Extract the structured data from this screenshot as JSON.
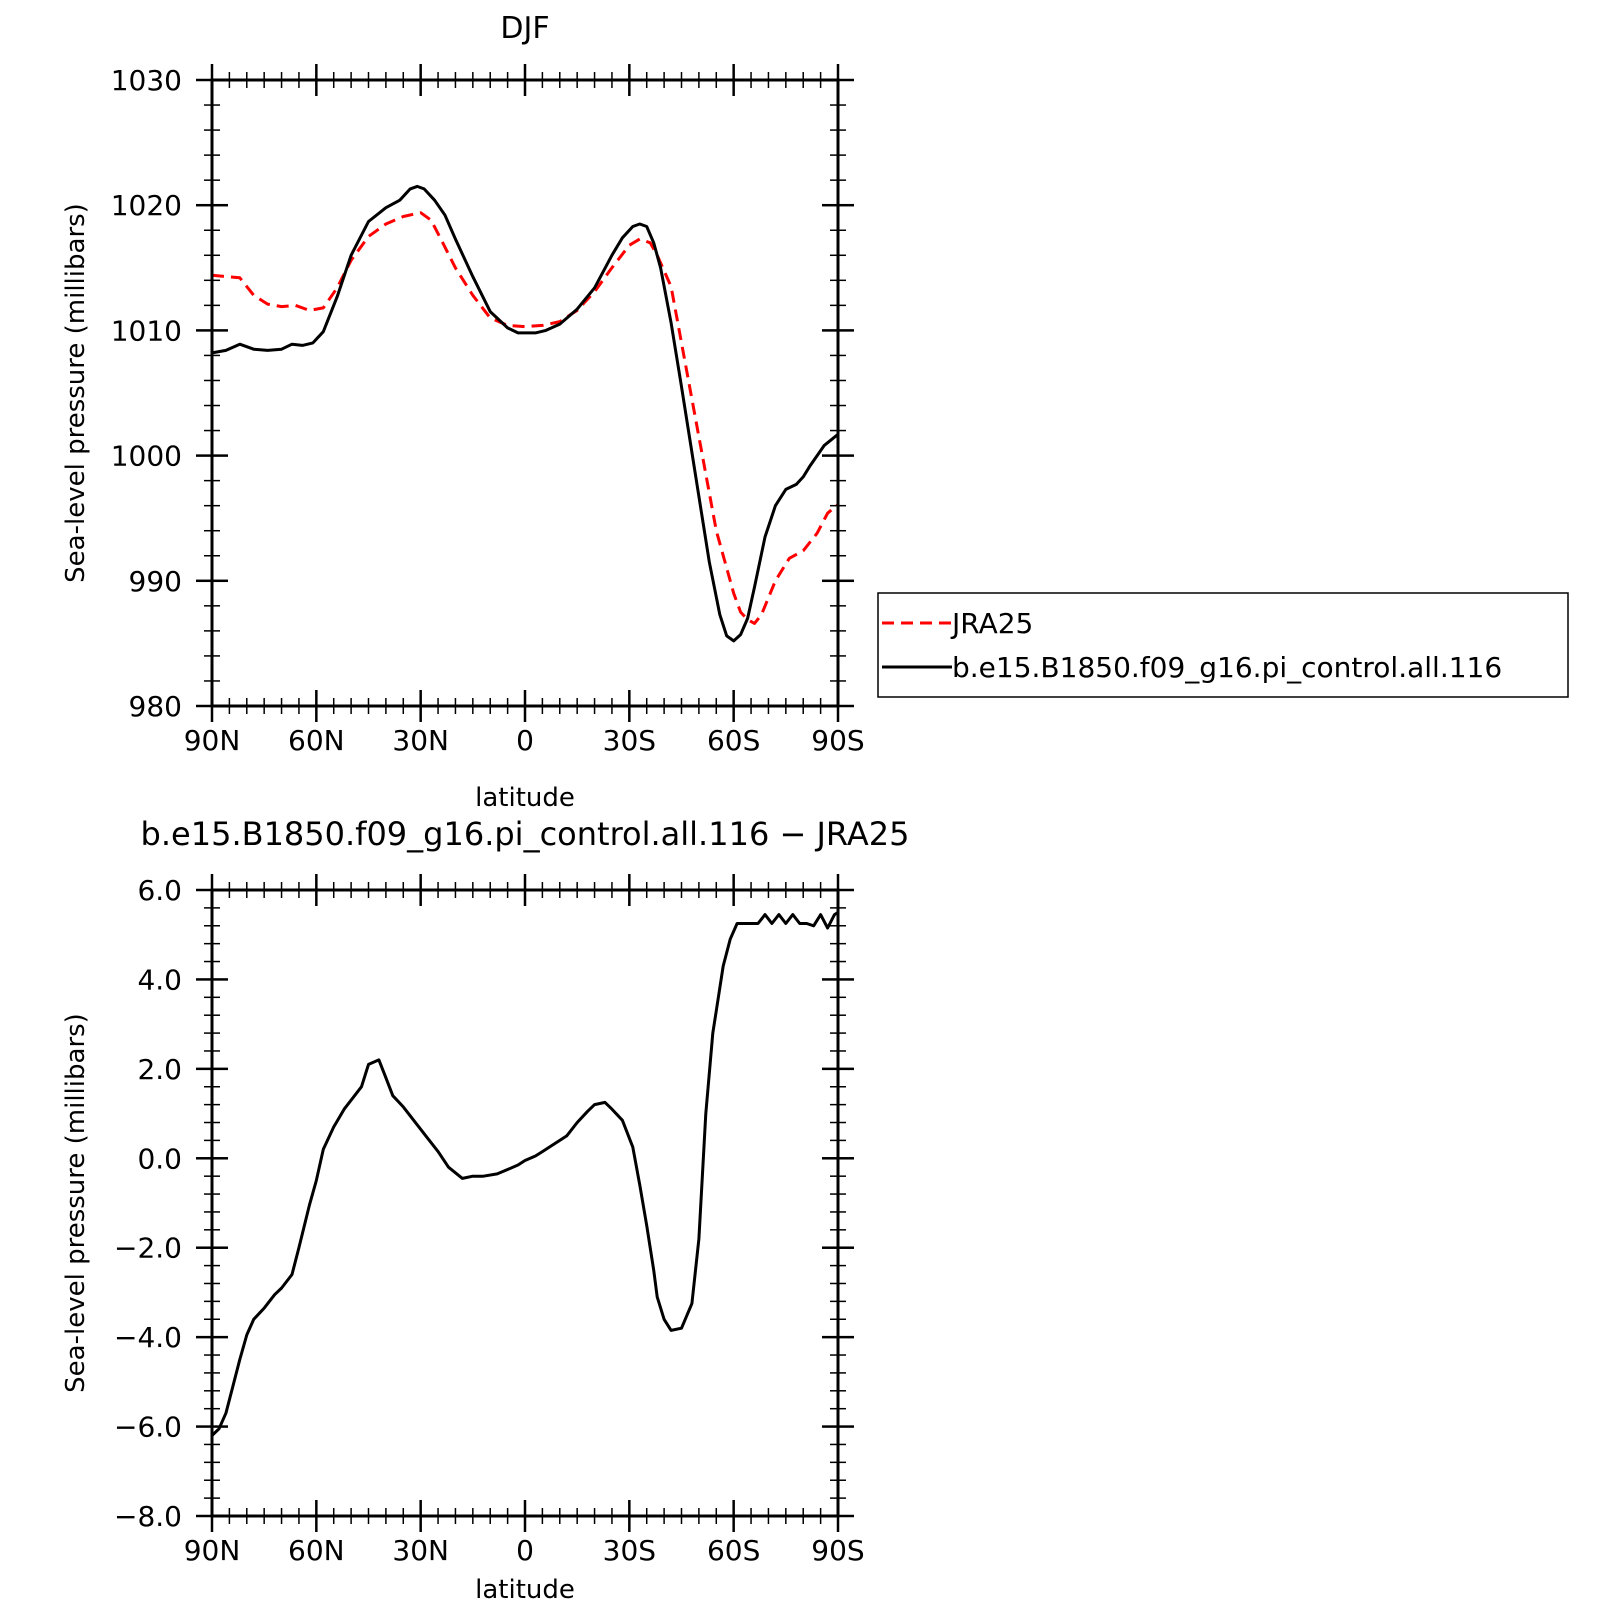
{
  "chart_data": [
    {
      "type": "line",
      "title": "DJF",
      "xlabel": "latitude",
      "ylabel": "Sea-level pressure (millibars)",
      "xlim": [
        90,
        -90
      ],
      "ylim": [
        980,
        1030
      ],
      "xticks": [
        {
          "value": 90,
          "label": "90N"
        },
        {
          "value": 60,
          "label": "60N"
        },
        {
          "value": 30,
          "label": "30N"
        },
        {
          "value": 0,
          "label": "0"
        },
        {
          "value": -30,
          "label": "30S"
        },
        {
          "value": -60,
          "label": "60S"
        },
        {
          "value": -90,
          "label": "90S"
        }
      ],
      "yticks": [
        {
          "value": 980,
          "label": "980"
        },
        {
          "value": 990,
          "label": "990"
        },
        {
          "value": 1000,
          "label": "1000"
        },
        {
          "value": 1010,
          "label": "1010"
        },
        {
          "value": 1020,
          "label": "1020"
        },
        {
          "value": 1030,
          "label": "1030"
        }
      ],
      "legend_position": "right",
      "series": [
        {
          "name": "JRA25",
          "color": "#ff0000",
          "dash": "dashed",
          "x": [
            90,
            82,
            78,
            74,
            70,
            66,
            62,
            58,
            54,
            50,
            45,
            40,
            35,
            30,
            27,
            24,
            20,
            15,
            10,
            5,
            0,
            -5,
            -10,
            -15,
            -20,
            -25,
            -30,
            -33,
            -36,
            -38,
            -42,
            -45,
            -50,
            -55,
            -60,
            -62,
            -64,
            -66,
            -68,
            -72,
            -76,
            -80,
            -84,
            -87,
            -90
          ],
          "y": [
            1014.4,
            1014.2,
            1012.8,
            1012.1,
            1011.9,
            1012.0,
            1011.6,
            1011.8,
            1013.4,
            1015.6,
            1017.5,
            1018.5,
            1019.1,
            1019.4,
            1018.8,
            1017.2,
            1015.0,
            1012.8,
            1011.0,
            1010.4,
            1010.3,
            1010.4,
            1010.7,
            1011.6,
            1013.1,
            1015.0,
            1016.8,
            1017.3,
            1017.0,
            1016.0,
            1013.5,
            1009.0,
            1001.5,
            994.0,
            989.0,
            987.5,
            986.9,
            986.6,
            987.3,
            990.0,
            991.8,
            992.4,
            993.8,
            995.4,
            996.1
          ]
        },
        {
          "name": "b.e15.B1850.f09_g16.pi_control.all.116",
          "color": "#000000",
          "dash": "solid",
          "x": [
            90,
            86,
            82,
            78,
            74,
            70,
            67,
            64,
            61,
            58,
            54,
            50,
            45,
            40,
            36,
            33,
            31,
            29,
            26,
            23,
            20,
            15,
            10,
            5,
            2,
            0,
            -3,
            -6,
            -10,
            -15,
            -20,
            -25,
            -28,
            -31,
            -33,
            -35,
            -37,
            -39,
            -42,
            -45,
            -49,
            -53,
            -56,
            -58,
            -60,
            -62,
            -64,
            -66,
            -69,
            -72,
            -75,
            -78,
            -80,
            -82,
            -86,
            -90
          ],
          "y": [
            1008.2,
            1008.4,
            1008.9,
            1008.5,
            1008.4,
            1008.5,
            1008.9,
            1008.8,
            1009.0,
            1009.9,
            1012.7,
            1016.0,
            1018.7,
            1019.8,
            1020.4,
            1021.3,
            1021.5,
            1021.3,
            1020.4,
            1019.2,
            1017.3,
            1014.3,
            1011.5,
            1010.2,
            1009.8,
            1009.8,
            1009.8,
            1010.0,
            1010.5,
            1011.7,
            1013.4,
            1016.0,
            1017.4,
            1018.3,
            1018.5,
            1018.3,
            1017.0,
            1015.0,
            1010.6,
            1005.5,
            998.5,
            991.5,
            987.3,
            985.6,
            985.2,
            985.7,
            987.0,
            989.5,
            993.5,
            996.0,
            997.3,
            997.7,
            998.3,
            999.2,
            1000.8,
            1001.7
          ]
        }
      ]
    },
    {
      "type": "line",
      "title": "b.e15.B1850.f09_g16.pi_control.all.116 − JRA25",
      "xlabel": "latitude",
      "ylabel": "Sea-level pressure (millibars)",
      "xlim": [
        90,
        -90
      ],
      "ylim": [
        -8,
        6
      ],
      "xticks": [
        {
          "value": 90,
          "label": "90N"
        },
        {
          "value": 60,
          "label": "60N"
        },
        {
          "value": 30,
          "label": "30N"
        },
        {
          "value": 0,
          "label": "0"
        },
        {
          "value": -30,
          "label": "30S"
        },
        {
          "value": -60,
          "label": "60S"
        },
        {
          "value": -90,
          "label": "90S"
        }
      ],
      "yticks": [
        {
          "value": -8,
          "label": "−8.0"
        },
        {
          "value": -6,
          "label": "−6.0"
        },
        {
          "value": -4,
          "label": "−4.0"
        },
        {
          "value": -2,
          "label": "−2.0"
        },
        {
          "value": 0,
          "label": "0.0"
        },
        {
          "value": 2,
          "label": "2.0"
        },
        {
          "value": 4,
          "label": "4.0"
        },
        {
          "value": 6,
          "label": "6.0"
        }
      ],
      "series": [
        {
          "color": "#000000",
          "dash": "solid",
          "x": [
            90,
            88,
            86,
            84,
            82,
            80,
            78,
            75,
            72,
            70,
            67,
            65,
            62,
            60,
            58,
            55,
            52,
            50,
            47,
            45,
            42,
            40,
            38,
            35,
            33,
            31,
            28,
            25,
            22,
            18,
            15,
            12,
            8,
            5,
            2,
            0,
            -3,
            -5,
            -8,
            -12,
            -15,
            -18,
            -20,
            -23,
            -25,
            -28,
            -31,
            -33,
            -35,
            -37,
            -38,
            -40,
            -42,
            -45,
            -48,
            -50,
            -52,
            -54,
            -55,
            -57,
            -59,
            -61,
            -63,
            -65,
            -67,
            -69,
            -71,
            -73,
            -75,
            -77,
            -79,
            -81,
            -83,
            -85,
            -87,
            -89,
            -90
          ],
          "y": [
            -6.2,
            -6.05,
            -5.7,
            -5.1,
            -4.5,
            -3.95,
            -3.6,
            -3.35,
            -3.05,
            -2.9,
            -2.6,
            -2.0,
            -1.05,
            -0.5,
            0.2,
            0.7,
            1.1,
            1.3,
            1.6,
            2.1,
            2.2,
            1.8,
            1.4,
            1.15,
            0.95,
            0.75,
            0.45,
            0.15,
            -0.2,
            -0.45,
            -0.4,
            -0.4,
            -0.35,
            -0.25,
            -0.15,
            -0.05,
            0.05,
            0.15,
            0.3,
            0.5,
            0.8,
            1.05,
            1.2,
            1.25,
            1.1,
            0.85,
            0.25,
            -0.6,
            -1.5,
            -2.5,
            -3.1,
            -3.6,
            -3.85,
            -3.8,
            -3.25,
            -1.8,
            1.0,
            2.8,
            3.3,
            4.3,
            4.9,
            5.25,
            5.25,
            5.25,
            5.25,
            5.45,
            5.25,
            5.45,
            5.25,
            5.45,
            5.25,
            5.25,
            5.2,
            5.45,
            5.15,
            5.45,
            5.5
          ]
        }
      ]
    }
  ]
}
